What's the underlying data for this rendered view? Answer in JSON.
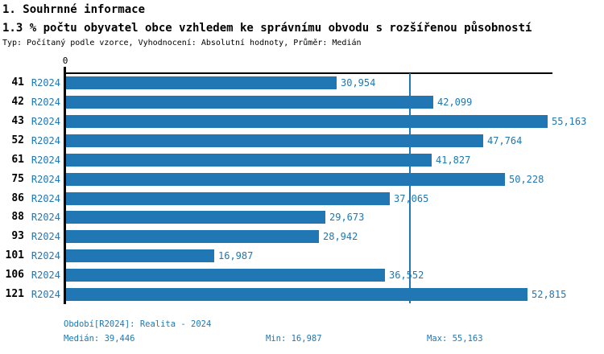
{
  "header": {
    "title": "1. Souhrnné informace",
    "subtitle": "1.3 % počtu obyvatel obce vzhledem ke správnímu obvodu s rozšířenou působností",
    "meta": "Typ: Počítaný podle vzorce, Vyhodnocení: Absolutní hodnoty, Průměr: Medián"
  },
  "chart_data": {
    "type": "bar",
    "orientation": "horizontal",
    "categories": [
      "41",
      "42",
      "43",
      "52",
      "61",
      "75",
      "86",
      "88",
      "93",
      "101",
      "106",
      "121"
    ],
    "series": [
      {
        "name": "R2024",
        "values": [
          30954,
          42099,
          55163,
          47764,
          41827,
          50228,
          37065,
          29673,
          28942,
          16987,
          36552,
          52815
        ],
        "value_labels": [
          "30,954",
          "42,099",
          "55,163",
          "47,764",
          "41,827",
          "50,228",
          "37,065",
          "29,673",
          "28,942",
          "16,987",
          "36,552",
          "52,815"
        ]
      }
    ],
    "xlim": [
      0,
      55800
    ],
    "x_tick_labels": [
      "0"
    ],
    "median_value": 39446,
    "grid": false,
    "legend": false,
    "colors": {
      "bar": "#2077b4",
      "median_line": "#2077b4",
      "value_text": "#1f77b4",
      "axis": "#000000"
    }
  },
  "footer": {
    "period": "Období[R2024]: Realita - 2024",
    "median": "Medián: 39,446",
    "min": "Min: 16,987",
    "max": "Max: 55,163"
  }
}
